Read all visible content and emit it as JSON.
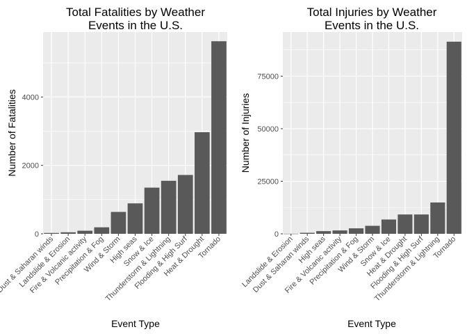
{
  "chart_data": [
    {
      "type": "bar",
      "title": "Total Fatalities by Weather\nEvents in the U.S.",
      "xlabel": "Event Type",
      "ylabel": "Number of Fatalities",
      "categories": [
        "Dust & Saharan winds",
        "Landslide & Erosion",
        "Fire & Volcanic activity",
        "Precipitation & Fog",
        "Wind & Storm",
        "High seas",
        "Snow & Ice",
        "Thunderstorm & Lightning",
        "Flooding & High Surf",
        "Heat & Drought",
        "Tornado"
      ],
      "values": [
        25,
        44,
        90,
        190,
        640,
        890,
        1350,
        1550,
        1720,
        2970,
        5630
      ],
      "ylim": [
        0,
        5900
      ],
      "yticks": [
        0,
        2000,
        4000
      ],
      "ytick_labels": [
        "0",
        "2000",
        "4000"
      ],
      "grid": true,
      "bar_color": "#595959",
      "panel_color": "#ebebeb"
    },
    {
      "type": "bar",
      "title": "Total Injuries by Weather\nEvents in the U.S.",
      "xlabel": "Event Type",
      "ylabel": "Number of Injuries",
      "categories": [
        "Landslide & Erosion",
        "Dust & Saharan winds",
        "High seas",
        "Fire & Volcanic activity",
        "Precipitation & Fog",
        "Wind & Storm",
        "Snow & Ice",
        "Heat & Drought",
        "Flooding & High Surf",
        "Thunderstorm & Lightning",
        "Tornado"
      ],
      "values": [
        55,
        480,
        1270,
        1600,
        2600,
        3800,
        6800,
        9200,
        9200,
        14900,
        91400
      ],
      "ylim": [
        0,
        96000
      ],
      "yticks": [
        0,
        25000,
        50000,
        75000
      ],
      "ytick_labels": [
        "0",
        "25000",
        "50000",
        "75000"
      ],
      "grid": true,
      "bar_color": "#595959",
      "panel_color": "#ebebeb"
    }
  ]
}
